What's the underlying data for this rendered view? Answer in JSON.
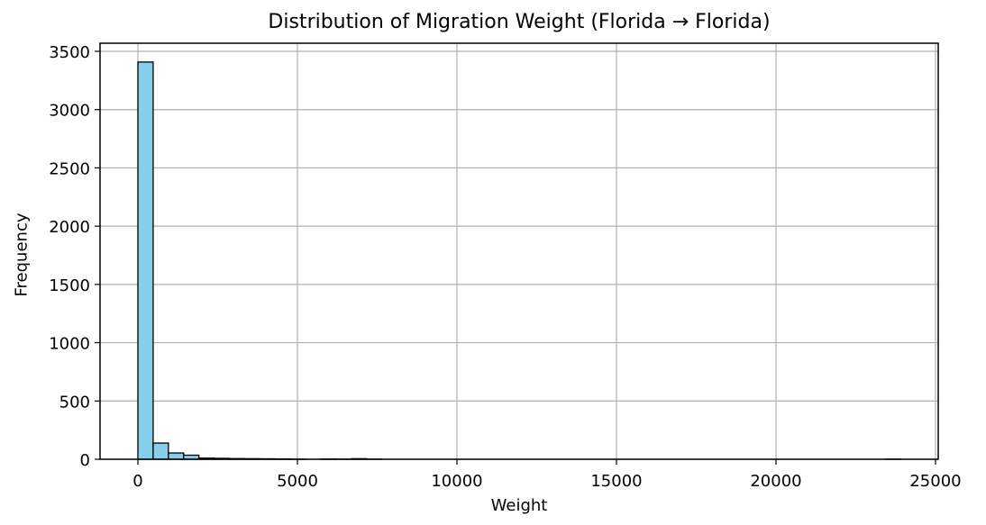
{
  "chart_data": {
    "type": "bar",
    "title": "Distribution of Migration Weight (Florida → Florida)",
    "xlabel": "Weight",
    "ylabel": "Frequency",
    "xlim": [
      -1200,
      25200
    ],
    "ylim": [
      0,
      3580
    ],
    "xticks": [
      0,
      5000,
      10000,
      15000,
      20000,
      25000
    ],
    "yticks": [
      0,
      500,
      1000,
      1500,
      2000,
      2500,
      3000,
      3500
    ],
    "grid": true,
    "bin_start": 0,
    "bin_width": 478,
    "bins": 50,
    "bar_color": "#87ceeb",
    "edge_color": "#000000",
    "values": [
      3408,
      139,
      54,
      35,
      10,
      8,
      6,
      5,
      4,
      3,
      1,
      0,
      2,
      1,
      5,
      1,
      0,
      0,
      0,
      0,
      0,
      0,
      0,
      0,
      0,
      0,
      0,
      0,
      0,
      0,
      0,
      0,
      0,
      0,
      0,
      0,
      0,
      0,
      0,
      0,
      0,
      0,
      0,
      0,
      0,
      0,
      0,
      0,
      0,
      1
    ]
  }
}
